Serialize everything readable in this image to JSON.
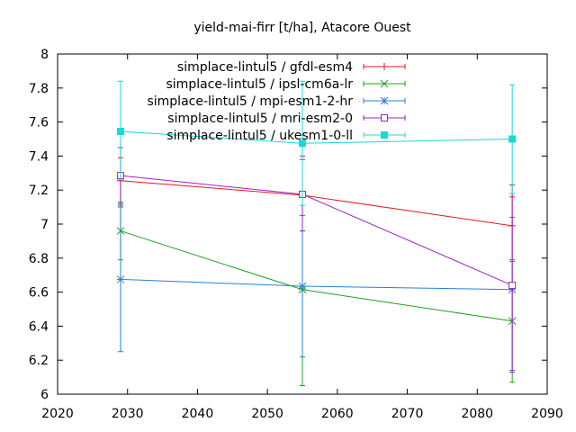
{
  "chart_data": {
    "type": "line",
    "title": "yield-mai-firr [t/ha], Atacore Ouest",
    "xlabel": "",
    "ylabel": "",
    "xlim": [
      2020,
      2090
    ],
    "ylim": [
      6,
      8
    ],
    "xticks": [
      2020,
      2030,
      2040,
      2050,
      2060,
      2070,
      2080,
      2090
    ],
    "yticks": [
      6,
      6.2,
      6.4,
      6.6,
      6.8,
      7,
      7.2,
      7.4,
      7.6,
      7.8,
      8
    ],
    "xtick_labels": [
      "2020",
      "2030",
      "2040",
      "2050",
      "2060",
      "2070",
      "2080",
      "2090"
    ],
    "ytick_labels": [
      "6",
      "6.2",
      "6.4",
      "6.6",
      "6.8",
      "7",
      "7.2",
      "7.4",
      "7.6",
      "7.8",
      "8"
    ],
    "grid": false,
    "legend": "top-right",
    "x": [
      2029,
      2055,
      2085
    ],
    "series": [
      {
        "name": "simplace-lintul5 / gfdl-esm4",
        "color": "#e41a1c",
        "marker": "plus",
        "values": [
          7.255,
          7.17,
          6.99
        ],
        "err_low": [
          7.11,
          6.96,
          6.79
        ],
        "err_high": [
          7.39,
          7.38,
          7.23
        ]
      },
      {
        "name": "simplace-lintul5 / ipsl-cm6a-lr",
        "color": "#1fa01f",
        "marker": "cross",
        "values": [
          6.96,
          6.615,
          6.43
        ],
        "err_low": [
          6.79,
          6.05,
          6.07
        ],
        "err_high": [
          7.13,
          7.17,
          6.78
        ]
      },
      {
        "name": "simplace-lintul5 / mpi-esm1-2-hr",
        "color": "#2a7fd4",
        "marker": "star",
        "values": [
          6.675,
          6.635,
          6.615
        ],
        "err_low": [
          6.25,
          6.22,
          6.14
        ],
        "err_high": [
          7.1,
          7.05,
          7.04
        ]
      },
      {
        "name": "simplace-lintul5 / mri-esm2-0",
        "color": "#a020c8",
        "marker": "open-square",
        "values": [
          7.285,
          7.175,
          6.64
        ],
        "err_low": [
          7.12,
          6.96,
          6.13
        ],
        "err_high": [
          7.45,
          7.4,
          7.16
        ]
      },
      {
        "name": "simplace-lintul5 / ukesm1-0-ll",
        "color": "#19d8d8",
        "marker": "filled-square",
        "values": [
          7.545,
          7.475,
          7.5
        ],
        "err_low": [
          7.26,
          7.11,
          7.18
        ],
        "err_high": [
          7.84,
          7.84,
          7.82
        ]
      }
    ]
  }
}
